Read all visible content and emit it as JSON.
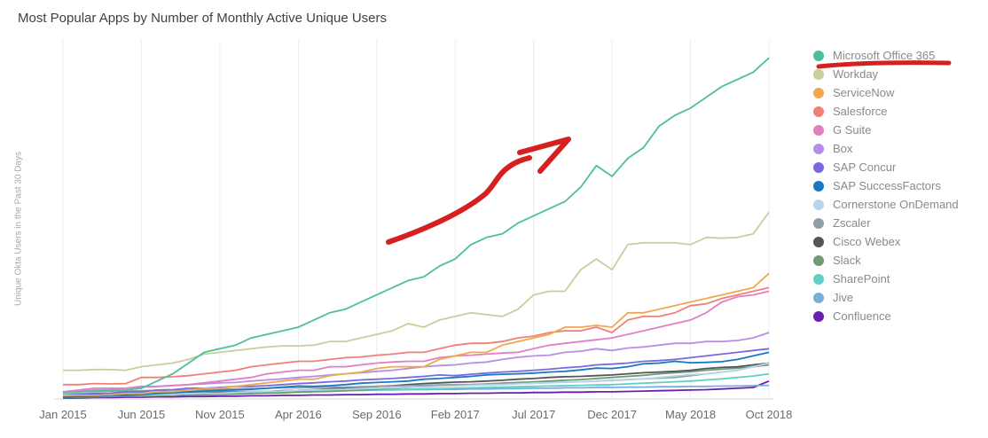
{
  "title": "Most Popular Apps by Number of Monthly Active Unique Users",
  "colors": {
    "grid": "#ececec",
    "axis": "#d4d4d4",
    "annotation": "#d62020"
  },
  "chart_data": {
    "type": "line",
    "title": "Most Popular Apps by Number of Monthly Active Unique Users",
    "xlabel": "",
    "ylabel": "Unique Okta Users in the Past 30 Days",
    "xlim": [
      0,
      45
    ],
    "ylim": [
      0,
      100
    ],
    "y_tick_labels": false,
    "grid": true,
    "legend_position": "right",
    "x_ticks": [
      {
        "i": 0,
        "label": "Jan 2015"
      },
      {
        "i": 5,
        "label": "Jun 2015"
      },
      {
        "i": 10,
        "label": "Nov 2015"
      },
      {
        "i": 15,
        "label": "Apr 2016"
      },
      {
        "i": 20,
        "label": "Sep 2016"
      },
      {
        "i": 25,
        "label": "Feb 2017"
      },
      {
        "i": 30,
        "label": "Jul 2017"
      },
      {
        "i": 35,
        "label": "Dec 2017"
      },
      {
        "i": 40,
        "label": "May 2018"
      },
      {
        "i": 45,
        "label": "Oct 2018"
      }
    ],
    "series": [
      {
        "name": "Microsoft Office 365",
        "color": "#4dbf9a",
        "values": [
          2,
          2,
          2.2,
          2.3,
          2.5,
          3,
          5,
          7,
          10,
          13,
          14,
          15,
          17,
          18,
          19,
          20,
          22,
          24,
          25,
          27,
          29,
          31,
          33,
          34,
          37,
          39,
          43,
          45,
          46,
          49,
          51,
          53,
          55,
          59,
          65,
          62,
          67,
          70,
          76,
          79,
          81,
          84,
          87,
          89,
          91,
          95
        ]
      },
      {
        "name": "Workday",
        "color": "#c4d19e",
        "values": [
          8,
          8,
          8.2,
          8.2,
          8,
          9,
          9.5,
          10,
          11,
          12.5,
          13,
          13.5,
          14,
          14.5,
          14.8,
          14.8,
          15,
          16,
          16,
          17,
          18,
          19,
          21,
          20,
          22,
          23,
          24,
          23.5,
          23,
          25,
          29,
          30,
          30,
          36,
          39,
          36,
          43,
          43.5,
          43.5,
          43.5,
          43,
          45,
          44.8,
          45,
          46,
          52
        ]
      },
      {
        "name": "ServiceNow",
        "color": "#f0a84f",
        "values": [
          1,
          1,
          1,
          1.2,
          1.5,
          1.5,
          2,
          2,
          2.5,
          3,
          3,
          3.5,
          4,
          4.5,
          5,
          5.5,
          5.5,
          6.5,
          7,
          7.5,
          8.5,
          9,
          9,
          9,
          11,
          12,
          13,
          13,
          15,
          16,
          17,
          18,
          20,
          20,
          20.5,
          20,
          24,
          24,
          25,
          26,
          27,
          28,
          29,
          30,
          31,
          35
        ]
      },
      {
        "name": "Salesforce",
        "color": "#f08077",
        "values": [
          4,
          4,
          4.3,
          4.2,
          4.3,
          6,
          6,
          6.2,
          6.5,
          7,
          7.5,
          8,
          9,
          9.5,
          10,
          10.5,
          10.5,
          11,
          11.5,
          11.7,
          12.2,
          12.5,
          13,
          13,
          14,
          15,
          15.5,
          15.5,
          16,
          17,
          17.5,
          18.5,
          19,
          19,
          20,
          18.5,
          22,
          23,
          23,
          24,
          26,
          26.5,
          28,
          29,
          30,
          31
        ]
      },
      {
        "name": "G Suite",
        "color": "#e27fc1",
        "values": [
          2,
          2.5,
          3,
          3,
          3,
          3.5,
          3.5,
          3.7,
          4,
          4.5,
          5,
          5.5,
          6,
          7,
          7.5,
          8,
          8,
          9,
          9,
          9.5,
          10,
          10.3,
          10.5,
          10.5,
          11.5,
          12,
          12.2,
          12.5,
          12.8,
          13,
          14,
          15,
          15.5,
          16,
          16.5,
          17,
          18,
          19,
          20,
          21,
          22,
          24,
          27,
          28.5,
          29,
          30
        ]
      },
      {
        "name": "Box",
        "color": "#b78ee5",
        "values": [
          2,
          2.2,
          2.5,
          2.6,
          3,
          3.3,
          3.5,
          3.8,
          4,
          4.2,
          4.5,
          4.6,
          5,
          5.3,
          5.6,
          6,
          6.3,
          6.7,
          7,
          7.3,
          7.7,
          8,
          8.5,
          9,
          9.3,
          9.5,
          10,
          10.3,
          11,
          11.6,
          12,
          12.2,
          13,
          13.3,
          14,
          13.5,
          14.2,
          14.5,
          15,
          15.5,
          15.5,
          16,
          16,
          16.3,
          17,
          18.5
        ]
      },
      {
        "name": "SAP Concur",
        "color": "#7a68e0",
        "values": [
          1,
          1.2,
          1.5,
          1.6,
          2,
          2,
          2.5,
          2.6,
          3,
          3,
          3.2,
          3.5,
          3.5,
          3.7,
          4,
          4.3,
          4.5,
          4.8,
          5,
          5.3,
          5.5,
          5.7,
          6,
          6.3,
          6.7,
          6.5,
          6.9,
          7.2,
          7.5,
          7.7,
          8,
          8.3,
          8.7,
          9,
          9.5,
          9.7,
          10,
          10.5,
          10.7,
          11,
          11.5,
          12,
          12.5,
          13,
          13.5,
          14
        ]
      },
      {
        "name": "SAP SuccessFactors",
        "color": "#1779c2",
        "values": [
          0.5,
          0.7,
          0.8,
          1,
          1,
          1.2,
          1.5,
          1.7,
          2,
          2.2,
          2.4,
          2.5,
          2.7,
          3,
          3.3,
          3.6,
          3.5,
          3.7,
          4,
          4.4,
          4.6,
          4.8,
          5,
          5.5,
          5.7,
          6,
          6.3,
          6.7,
          6.9,
          7,
          7.2,
          7.5,
          7.7,
          8.1,
          8.6,
          8.5,
          9,
          9.8,
          10,
          10.5,
          10.1,
          10.2,
          10.4,
          11,
          12,
          13
        ]
      },
      {
        "name": "Cornerstone OnDemand",
        "color": "#b5d6f0",
        "values": [
          0.7,
          0.7,
          0.9,
          1,
          1,
          1.1,
          1.2,
          1.3,
          1.5,
          1.6,
          1.6,
          1.8,
          2,
          2.1,
          2.2,
          2.4,
          2.5,
          2.6,
          2.7,
          2.9,
          3,
          3.1,
          3.3,
          3.3,
          3.5,
          3.6,
          3.8,
          3.9,
          4,
          4.2,
          4.4,
          4.5,
          4.7,
          4.8,
          5,
          5.1,
          5.3,
          5.6,
          6,
          6.4,
          6.8,
          7,
          7.5,
          8,
          9,
          10
        ]
      },
      {
        "name": "Zscaler",
        "color": "#8f9fa8",
        "values": [
          2,
          2,
          2.1,
          2.2,
          2.2,
          2.3,
          2.4,
          2.5,
          2.5,
          2.6,
          2.7,
          2.8,
          2.9,
          3,
          3.1,
          3.1,
          3.2,
          3.3,
          3.3,
          3.4,
          3.5,
          3.6,
          3.7,
          3.8,
          3.9,
          4,
          4,
          4.1,
          4.2,
          4.3,
          4.4,
          4.6,
          4.7,
          4.8,
          5,
          5.2,
          5.4,
          5.6,
          5.8,
          6,
          6.5,
          7,
          7.5,
          8,
          9,
          10
        ]
      },
      {
        "name": "Cisco Webex",
        "color": "#555555",
        "values": [
          1,
          1,
          1.1,
          1.2,
          1.3,
          1.4,
          1.4,
          1.5,
          1.6,
          1.7,
          1.8,
          1.9,
          2,
          2.1,
          2.3,
          2.4,
          2.6,
          2.8,
          3,
          3.2,
          3.5,
          3.7,
          4,
          4.3,
          4.5,
          4.7,
          4.8,
          5,
          5.2,
          5.5,
          5.7,
          6,
          6.2,
          6.3,
          6.5,
          6.7,
          7,
          7.3,
          7.5,
          7.7,
          8,
          8.5,
          8.8,
          9,
          9.5,
          10
        ]
      },
      {
        "name": "Slack",
        "color": "#6f9a72",
        "values": [
          0.5,
          0.5,
          0.6,
          0.7,
          0.8,
          0.8,
          0.9,
          1,
          1.1,
          1.2,
          1.3,
          1.4,
          1.5,
          1.6,
          1.7,
          1.9,
          2,
          2.1,
          2.3,
          2.5,
          2.7,
          3,
          3.2,
          3.4,
          3.6,
          3.8,
          4,
          4.2,
          4.4,
          4.6,
          4.8,
          5,
          5.2,
          5.4,
          5.7,
          6,
          6.3,
          6.6,
          7,
          7.3,
          7.6,
          8,
          8.3,
          8.6,
          9,
          9.5
        ]
      },
      {
        "name": "SharePoint",
        "color": "#5fd0c8",
        "values": [
          1,
          1,
          1,
          1.1,
          1.1,
          1.2,
          1.2,
          1.3,
          1.3,
          1.4,
          1.5,
          1.6,
          1.7,
          1.8,
          1.9,
          2,
          2.1,
          2.2,
          2.3,
          2.4,
          2.5,
          2.6,
          2.7,
          2.8,
          2.9,
          3,
          3.1,
          3.2,
          3.3,
          3.4,
          3.5,
          3.6,
          3.7,
          3.8,
          3.9,
          4,
          4.2,
          4.4,
          4.6,
          4.8,
          5,
          5.3,
          5.6,
          6,
          6.4,
          7
        ]
      },
      {
        "name": "Jive",
        "color": "#76b0d8",
        "values": [
          1.5,
          1.5,
          1.6,
          1.6,
          1.7,
          1.7,
          1.8,
          1.8,
          1.9,
          1.9,
          2,
          2,
          2.1,
          2.1,
          2.2,
          2.2,
          2.3,
          2.3,
          2.4,
          2.4,
          2.5,
          2.5,
          2.6,
          2.6,
          2.7,
          2.7,
          2.8,
          2.8,
          2.9,
          2.9,
          3,
          3,
          3.1,
          3.1,
          3.2,
          3.2,
          3.3,
          3.3,
          3.4,
          3.4,
          3.5,
          3.5,
          3.6,
          3.6,
          3.7,
          3.8
        ]
      },
      {
        "name": "Confluence",
        "color": "#6a1fb0",
        "values": [
          0.3,
          0.3,
          0.4,
          0.4,
          0.5,
          0.5,
          0.6,
          0.6,
          0.7,
          0.7,
          0.8,
          0.8,
          0.9,
          0.9,
          1,
          1,
          1.1,
          1.1,
          1.2,
          1.2,
          1.3,
          1.3,
          1.4,
          1.4,
          1.5,
          1.5,
          1.6,
          1.6,
          1.7,
          1.7,
          1.8,
          1.8,
          1.9,
          1.9,
          2,
          2,
          2.1,
          2.2,
          2.3,
          2.4,
          2.5,
          2.6,
          2.8,
          3,
          3.2,
          5
        ]
      }
    ]
  }
}
